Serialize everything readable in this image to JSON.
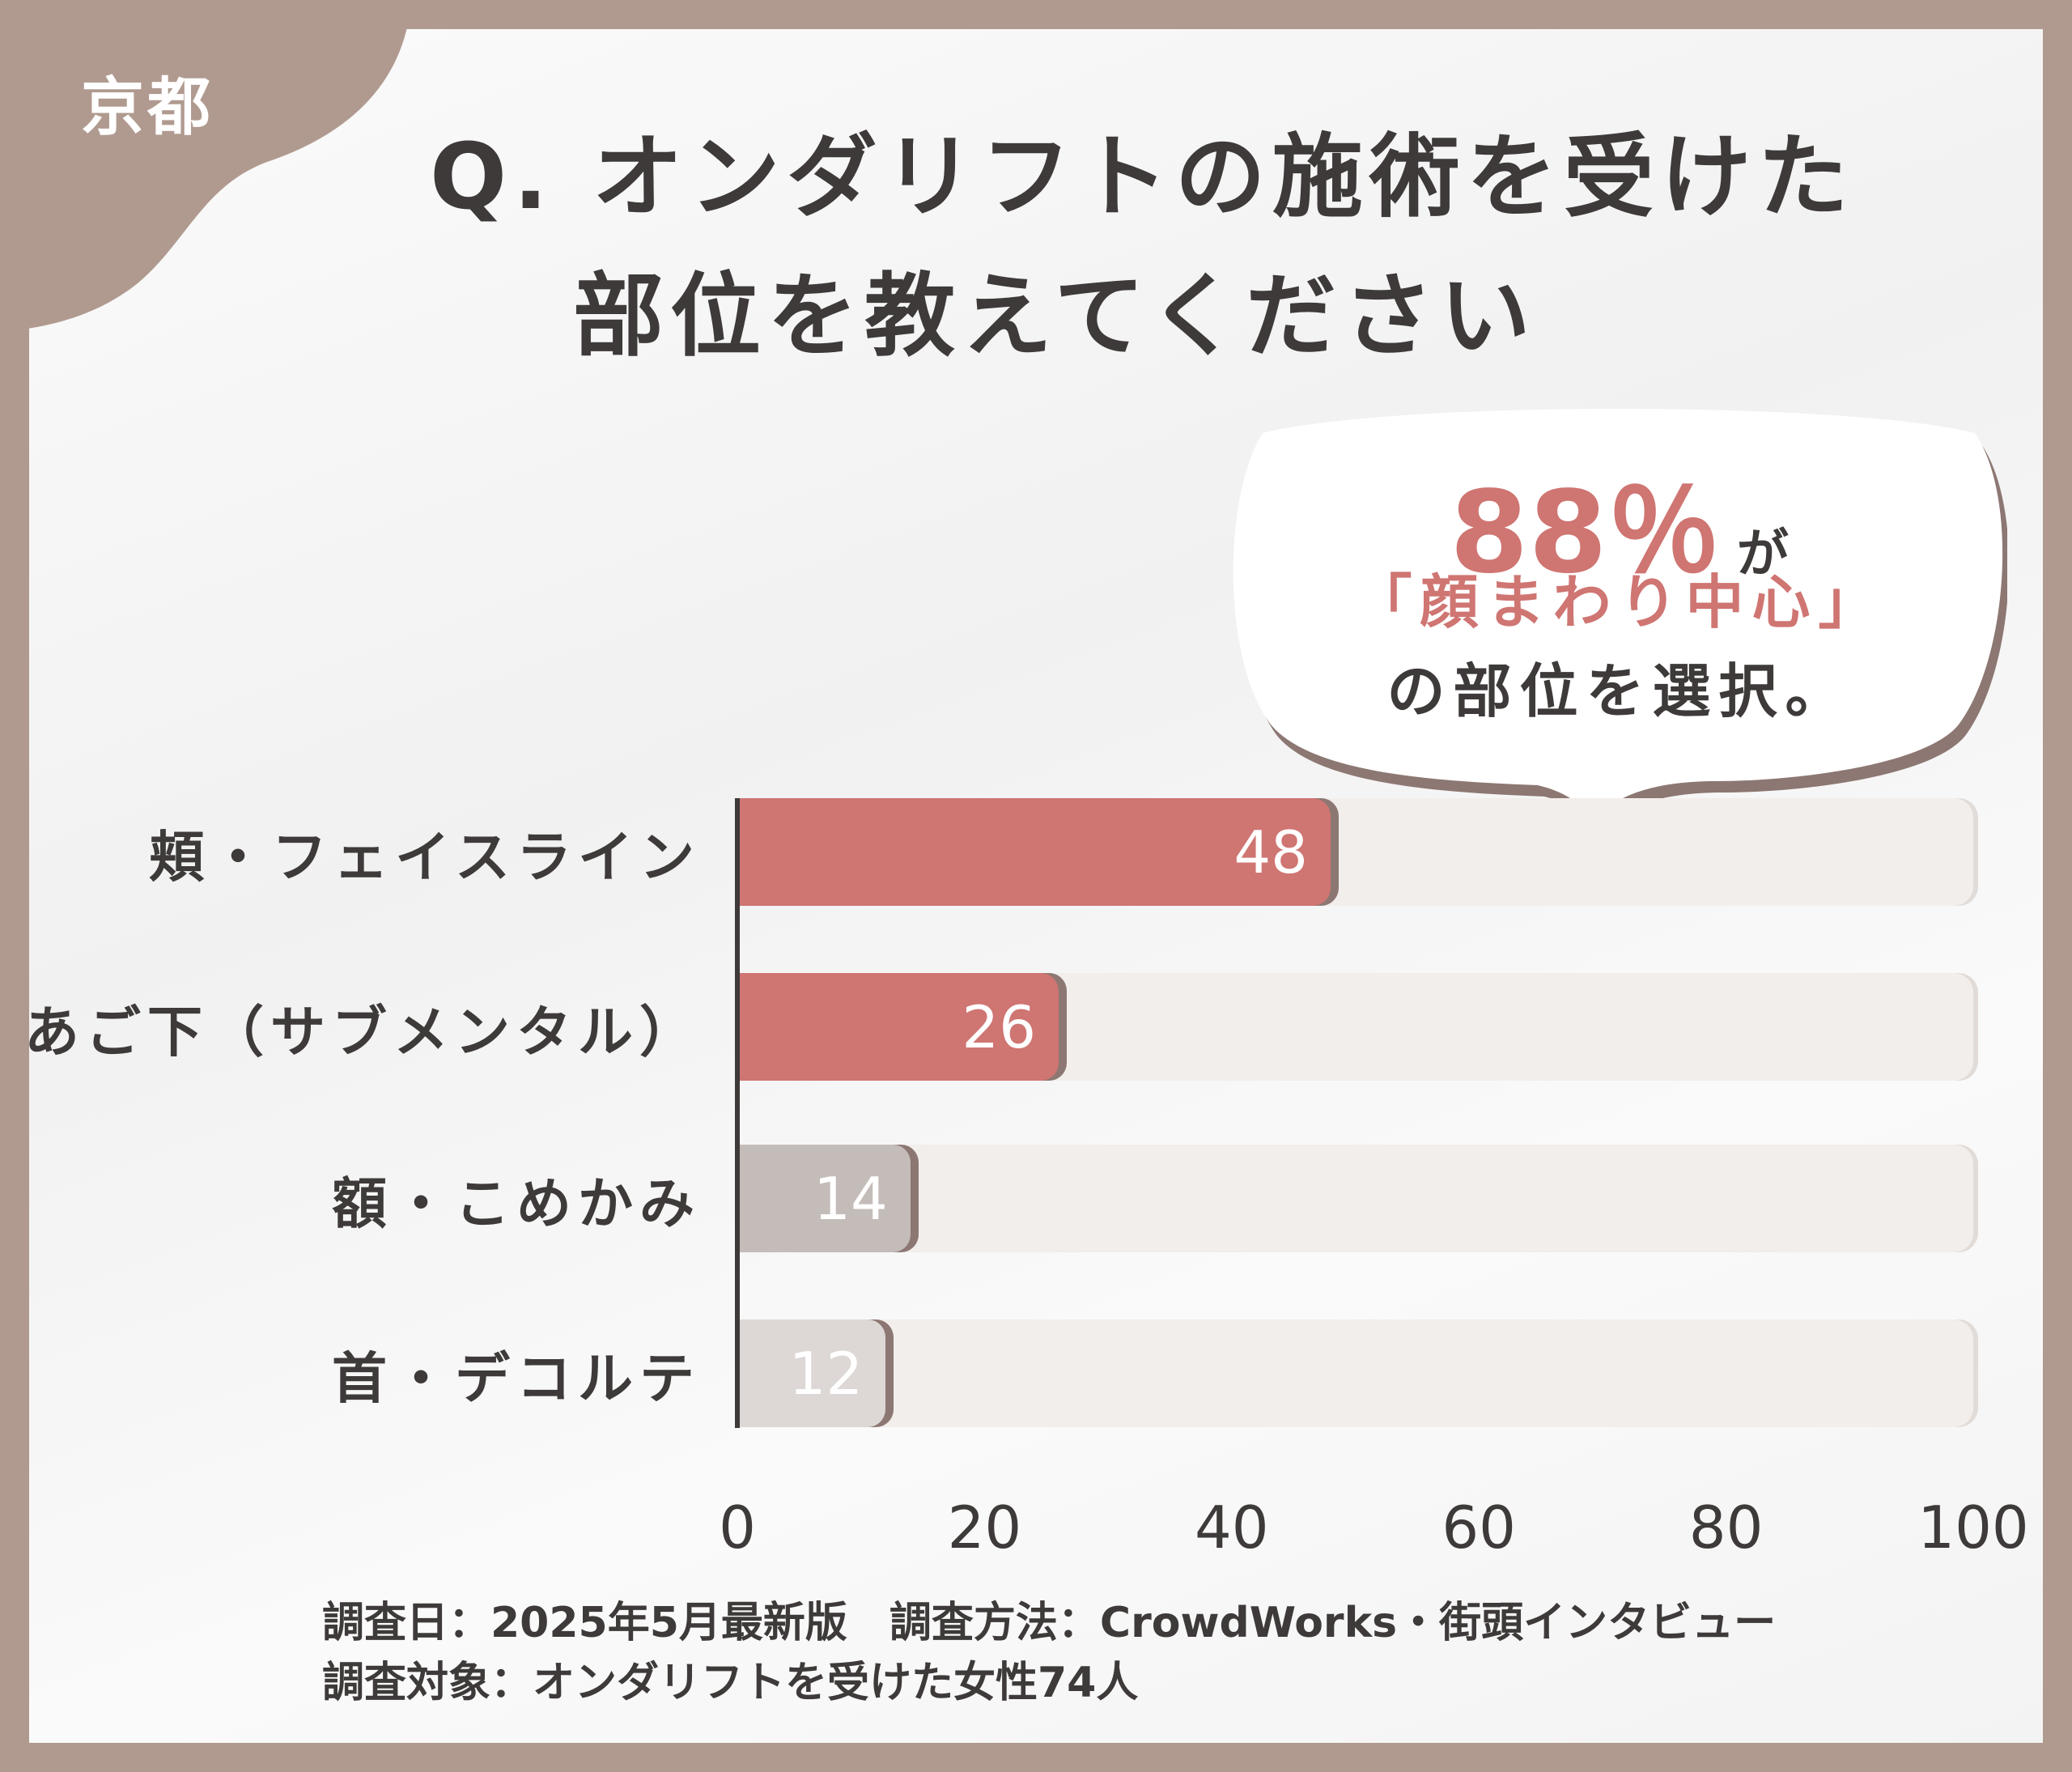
{
  "badge": {
    "city": "京都"
  },
  "title": {
    "line1": "Q. オンダリフトの施術を受けた",
    "line2": "部位を教えてください"
  },
  "callout": {
    "percent": "88％",
    "particle": "が",
    "highlight": "「顔まわり中心」",
    "rest": "の部位を選択。"
  },
  "colors": {
    "frame": "#b09a8f",
    "accent": "#cf7572",
    "gray_bar": "#c4bcb9",
    "light_bar": "#ddd7d5",
    "track": "#f2eeeb"
  },
  "chart_data": {
    "type": "bar",
    "orientation": "horizontal",
    "categories": [
      "頬・フェイスライン",
      "あご下（サブメンタル）",
      "額・こめかみ",
      "首・デコルテ"
    ],
    "values": [
      48,
      26,
      14,
      12
    ],
    "value_labels": [
      "48",
      "26",
      "14",
      "12"
    ],
    "xlim": [
      0,
      100
    ],
    "xticks": [
      "0",
      "20",
      "40",
      "60",
      "80",
      "100"
    ],
    "grid": false
  },
  "footer": {
    "line1": "調査日：2025年5月最新版　調査方法：CrowdWorks・街頭インタビュー",
    "line2": "調査対象：オンダリフトを受けた女性74人"
  }
}
